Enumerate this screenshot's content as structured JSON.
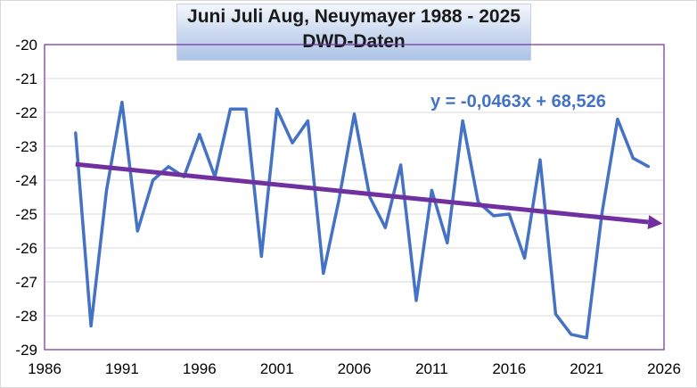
{
  "colors": {
    "series": "#4472c4",
    "trend": "#7030a0",
    "plot_border": "#7030a0",
    "grid": "#d9d9d9",
    "equation": "#4472c4"
  },
  "chart_data": {
    "type": "line",
    "title": "Juni Juli Aug, Neuymayer 1988 - 2025",
    "subtitle": "DWD-Daten",
    "xlabel": "",
    "ylabel": "",
    "xlim": [
      1986,
      2026
    ],
    "ylim": [
      -29,
      -20
    ],
    "x_ticks": [
      "1986",
      "1991",
      "1996",
      "2001",
      "2006",
      "2011",
      "2016",
      "2021",
      "2026"
    ],
    "y_ticks": [
      "-20",
      "-21",
      "-22",
      "-23",
      "-24",
      "-25",
      "-26",
      "-27",
      "-28",
      "-29"
    ],
    "grid": "horizontal",
    "series": [
      {
        "x": [
          1988,
          1989,
          1990,
          1991,
          1992,
          1993,
          1994,
          1995,
          1996,
          1997,
          1998,
          1999,
          2000,
          2001,
          2002,
          2003,
          2004,
          2005,
          2006,
          2007,
          2008,
          2009,
          2010,
          2011,
          2012,
          2013,
          2014,
          2015,
          2016,
          2017,
          2018,
          2019,
          2020,
          2021,
          2022,
          2023,
          2024,
          2025
        ],
        "y": [
          -22.6,
          -28.3,
          -24.3,
          -21.7,
          -25.5,
          -24.0,
          -23.6,
          -23.9,
          -22.65,
          -23.9,
          -21.9,
          -21.9,
          -26.25,
          -21.9,
          -22.9,
          -22.25,
          -26.75,
          -24.6,
          -22.05,
          -24.5,
          -25.4,
          -23.55,
          -27.55,
          -24.3,
          -25.85,
          -22.25,
          -24.65,
          -25.05,
          -25.0,
          -26.3,
          -23.4,
          -27.95,
          -28.55,
          -28.65,
          -24.95,
          -22.2,
          -23.35,
          -23.6
        ]
      }
    ],
    "trendline": {
      "x": [
        1988,
        2025.9
      ],
      "y": [
        -23.53,
        -25.28
      ],
      "equation": "y = -0,0463x + 68,526"
    }
  }
}
